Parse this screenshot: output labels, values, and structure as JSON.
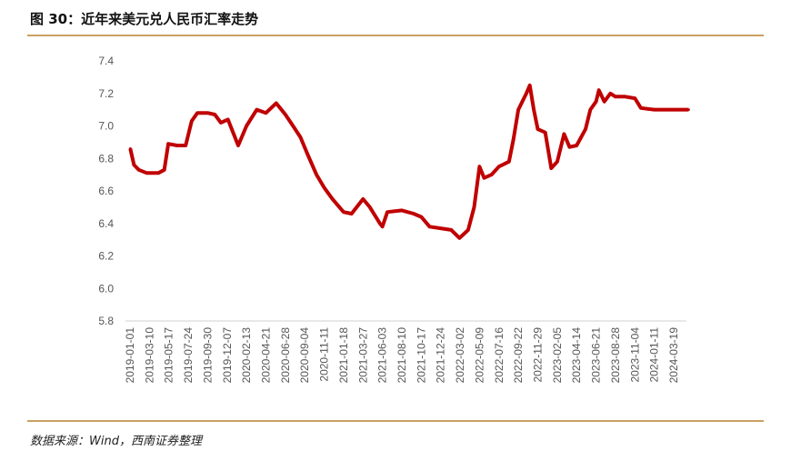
{
  "title": "图 30：近年来美元兑人民币汇率走势",
  "source": "数据来源：Wind，西南证券整理",
  "chart_data": {
    "type": "line",
    "title": "",
    "xlabel": "",
    "ylabel": "",
    "ylim": [
      5.8,
      7.4
    ],
    "yticks": [
      "7.4",
      "7.2",
      "7.0",
      "6.8",
      "6.6",
      "6.4",
      "6.2",
      "6.0",
      "5.8"
    ],
    "xticks": [
      "2019-01-01",
      "2019-03-10",
      "2019-05-17",
      "2019-07-24",
      "2019-09-30",
      "2019-12-07",
      "2020-02-13",
      "2020-04-21",
      "2020-06-28",
      "2020-09-04",
      "2020-11-11",
      "2021-01-18",
      "2021-03-27",
      "2021-06-03",
      "2021-08-10",
      "2021-10-17",
      "2021-12-24",
      "2022-03-02",
      "2022-05-09",
      "2022-07-16",
      "2022-09-22",
      "2022-11-29",
      "2023-02-05",
      "2023-04-14",
      "2023-06-21",
      "2023-08-28",
      "2023-11-04",
      "2024-01-11",
      "2024-03-19"
    ],
    "grid": false,
    "color": "#c00000",
    "series": [
      {
        "points": [
          [
            "2019-01-02",
            6.86
          ],
          [
            "2019-01-15",
            6.76
          ],
          [
            "2019-02-01",
            6.73
          ],
          [
            "2019-03-01",
            6.71
          ],
          [
            "2019-04-10",
            6.71
          ],
          [
            "2019-05-01",
            6.73
          ],
          [
            "2019-05-15",
            6.89
          ],
          [
            "2019-06-15",
            6.88
          ],
          [
            "2019-07-15",
            6.88
          ],
          [
            "2019-08-05",
            7.03
          ],
          [
            "2019-08-25",
            7.08
          ],
          [
            "2019-09-30",
            7.08
          ],
          [
            "2019-10-25",
            7.07
          ],
          [
            "2019-11-15",
            7.02
          ],
          [
            "2019-12-10",
            7.04
          ],
          [
            "2020-01-15",
            6.88
          ],
          [
            "2020-02-13",
            7.0
          ],
          [
            "2020-03-20",
            7.1
          ],
          [
            "2020-04-21",
            7.08
          ],
          [
            "2020-05-27",
            7.14
          ],
          [
            "2020-06-28",
            7.07
          ],
          [
            "2020-07-25",
            7.0
          ],
          [
            "2020-08-20",
            6.93
          ],
          [
            "2020-09-15",
            6.82
          ],
          [
            "2020-10-15",
            6.7
          ],
          [
            "2020-11-11",
            6.62
          ],
          [
            "2020-12-10",
            6.55
          ],
          [
            "2021-01-18",
            6.47
          ],
          [
            "2021-02-15",
            6.46
          ],
          [
            "2021-03-27",
            6.55
          ],
          [
            "2021-04-20",
            6.5
          ],
          [
            "2021-05-25",
            6.4
          ],
          [
            "2021-06-03",
            6.38
          ],
          [
            "2021-06-20",
            6.47
          ],
          [
            "2021-08-10",
            6.48
          ],
          [
            "2021-09-20",
            6.46
          ],
          [
            "2021-10-17",
            6.44
          ],
          [
            "2021-11-15",
            6.38
          ],
          [
            "2021-12-24",
            6.37
          ],
          [
            "2022-01-30",
            6.36
          ],
          [
            "2022-02-28",
            6.31
          ],
          [
            "2022-03-30",
            6.36
          ],
          [
            "2022-04-20",
            6.5
          ],
          [
            "2022-05-09",
            6.75
          ],
          [
            "2022-05-25",
            6.68
          ],
          [
            "2022-06-20",
            6.7
          ],
          [
            "2022-07-16",
            6.75
          ],
          [
            "2022-08-20",
            6.78
          ],
          [
            "2022-09-05",
            6.92
          ],
          [
            "2022-09-22",
            7.1
          ],
          [
            "2022-10-20",
            7.2
          ],
          [
            "2022-11-01",
            7.25
          ],
          [
            "2022-11-15",
            7.1
          ],
          [
            "2022-11-29",
            6.98
          ],
          [
            "2022-12-25",
            6.96
          ],
          [
            "2023-01-15",
            6.74
          ],
          [
            "2023-02-05",
            6.78
          ],
          [
            "2023-03-01",
            6.95
          ],
          [
            "2023-03-20",
            6.87
          ],
          [
            "2023-04-14",
            6.88
          ],
          [
            "2023-05-15",
            6.98
          ],
          [
            "2023-06-01",
            7.1
          ],
          [
            "2023-06-21",
            7.15
          ],
          [
            "2023-07-01",
            7.22
          ],
          [
            "2023-07-20",
            7.15
          ],
          [
            "2023-08-10",
            7.2
          ],
          [
            "2023-08-28",
            7.18
          ],
          [
            "2023-10-01",
            7.18
          ],
          [
            "2023-11-04",
            7.17
          ],
          [
            "2023-11-25",
            7.11
          ],
          [
            "2024-01-11",
            7.1
          ],
          [
            "2024-02-15",
            7.1
          ],
          [
            "2024-03-19",
            7.1
          ],
          [
            "2024-05-10",
            7.1
          ]
        ]
      }
    ]
  }
}
